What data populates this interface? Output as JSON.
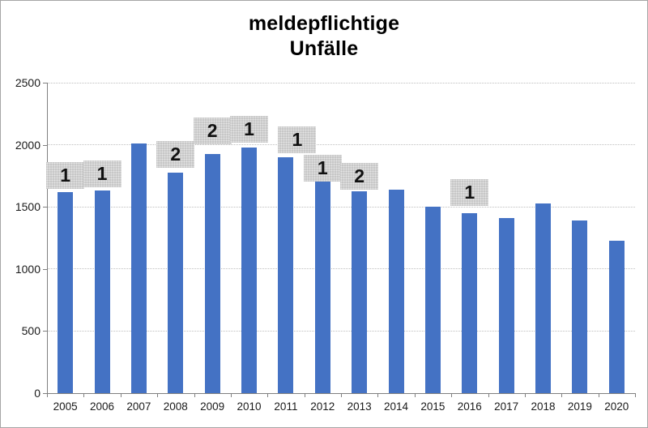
{
  "title": {
    "lines": [
      "meldepflichtige",
      "Unfälle"
    ]
  },
  "chart_data": {
    "type": "bar",
    "title": "meldepflichtige Unfälle",
    "categories": [
      "2005",
      "2006",
      "2007",
      "2008",
      "2009",
      "2010",
      "2011",
      "2012",
      "2013",
      "2014",
      "2015",
      "2016",
      "2017",
      "2018",
      "2019",
      "2020"
    ],
    "values": [
      1620,
      1630,
      2010,
      1775,
      1925,
      1975,
      1900,
      1720,
      1625,
      1640,
      1500,
      1450,
      1410,
      1530,
      1390,
      1230
    ],
    "xlabel": "",
    "ylabel": "",
    "ylim": [
      0,
      2500
    ],
    "yticks": [
      0,
      500,
      1000,
      1500,
      2000,
      2500
    ],
    "grid": "horizontal-dotted",
    "legend": "none",
    "bar_color": "#4472C4",
    "label_box_color": "#C7C7C7",
    "data_labels": [
      {
        "category": "2005",
        "text": "1"
      },
      {
        "category": "2006",
        "text": "1"
      },
      {
        "category": "2008",
        "text": "2"
      },
      {
        "category": "2009",
        "text": "2"
      },
      {
        "category": "2010",
        "text": "1"
      },
      {
        "category": "2011",
        "text": "1"
      },
      {
        "category": "2012",
        "text": "1"
      },
      {
        "category": "2013",
        "text": "2"
      },
      {
        "category": "2016",
        "text": "1"
      }
    ]
  }
}
